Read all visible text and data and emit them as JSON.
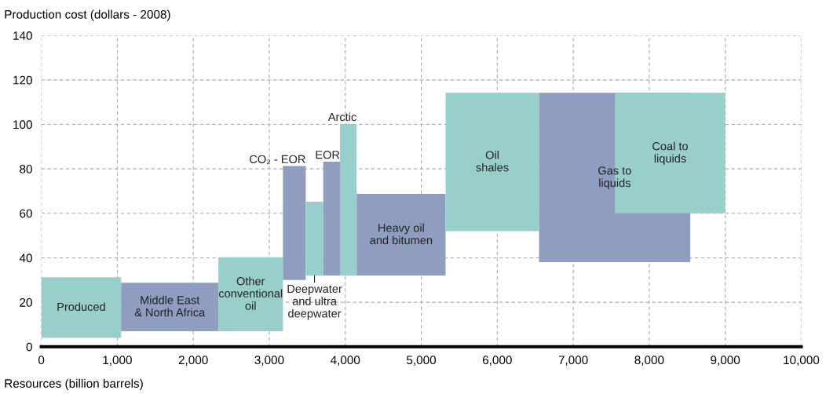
{
  "chart_data": {
    "type": "bar",
    "xlabel": "Resources (billion barrels)",
    "ylabel": "Production cost (dollars - 2008)",
    "xlim": [
      0,
      10000
    ],
    "ylim": [
      0,
      140
    ],
    "xticks": [
      {
        "value": 0,
        "label": "0"
      },
      {
        "value": 1000,
        "label": "1,000"
      },
      {
        "value": 2000,
        "label": "2,000"
      },
      {
        "value": 3000,
        "label": "3,000"
      },
      {
        "value": 4000,
        "label": "4,000"
      },
      {
        "value": 5000,
        "label": "5,000"
      },
      {
        "value": 6000,
        "label": "6,000"
      },
      {
        "value": 7000,
        "label": "7,000"
      },
      {
        "value": 8000,
        "label": "8,000"
      },
      {
        "value": 9000,
        "label": "9,000"
      },
      {
        "value": 10000,
        "label": "10,000"
      }
    ],
    "yticks": [
      0,
      20,
      40,
      60,
      80,
      100,
      120,
      140
    ],
    "grid": true,
    "series": [
      {
        "name": "Produced",
        "color": "#99cfcb",
        "x": [
          525
        ],
        "xerrors": [
          525
        ],
        "base": [
          4
        ],
        "values": [
          27
        ]
      },
      {
        "name": "Middle East\n& North Africa",
        "color": "#8f9ec0",
        "x": [
          1690
        ],
        "xerrors": [
          640
        ],
        "base": [
          7
        ],
        "values": [
          21.5
        ]
      },
      {
        "name": "Other\nconventional\noil",
        "color": "#99cfcb",
        "x": [
          2755
        ],
        "xerrors": [
          425
        ],
        "base": [
          7
        ],
        "values": [
          33
        ]
      },
      {
        "name": "CO₂ - EOR",
        "color": "#8f9ec0",
        "x": [
          3330
        ],
        "xerrors": [
          150
        ],
        "base": [
          30
        ],
        "values": [
          51
        ]
      },
      {
        "name": "Deepwater\nand ultra\ndeepwater",
        "color": "#99cfcb",
        "x": [
          3595
        ],
        "xerrors": [
          115
        ],
        "base": [
          32
        ],
        "values": [
          33
        ]
      },
      {
        "name": "EOR",
        "color": "#8f9ec0",
        "x": [
          3820
        ],
        "xerrors": [
          110
        ],
        "base": [
          32
        ],
        "values": [
          51
        ]
      },
      {
        "name": "Arctic",
        "color": "#99cfcb",
        "x": [
          4040
        ],
        "xerrors": [
          110
        ],
        "base": [
          32
        ],
        "values": [
          68
        ]
      },
      {
        "name": "Heavy oil\nand bitumen",
        "color": "#8f9ec0",
        "x": [
          4735
        ],
        "xerrors": [
          585
        ],
        "base": [
          32
        ],
        "values": [
          36.5
        ]
      },
      {
        "name": "Oil\nshales",
        "color": "#99cfcb",
        "x": [
          5935
        ],
        "xerrors": [
          615
        ],
        "base": [
          52
        ],
        "values": [
          62
        ]
      },
      {
        "name": "Gas to\nliquids",
        "color": "#8f9ec0",
        "x": [
          7545
        ],
        "xerrors": [
          995
        ],
        "base": [
          38
        ],
        "values": [
          76
        ]
      },
      {
        "name": "Coal to\nliquids",
        "color": "#99cfcb",
        "x": [
          8275
        ],
        "xerrors": [
          725
        ],
        "base": [
          60
        ],
        "values": [
          54
        ]
      }
    ]
  }
}
